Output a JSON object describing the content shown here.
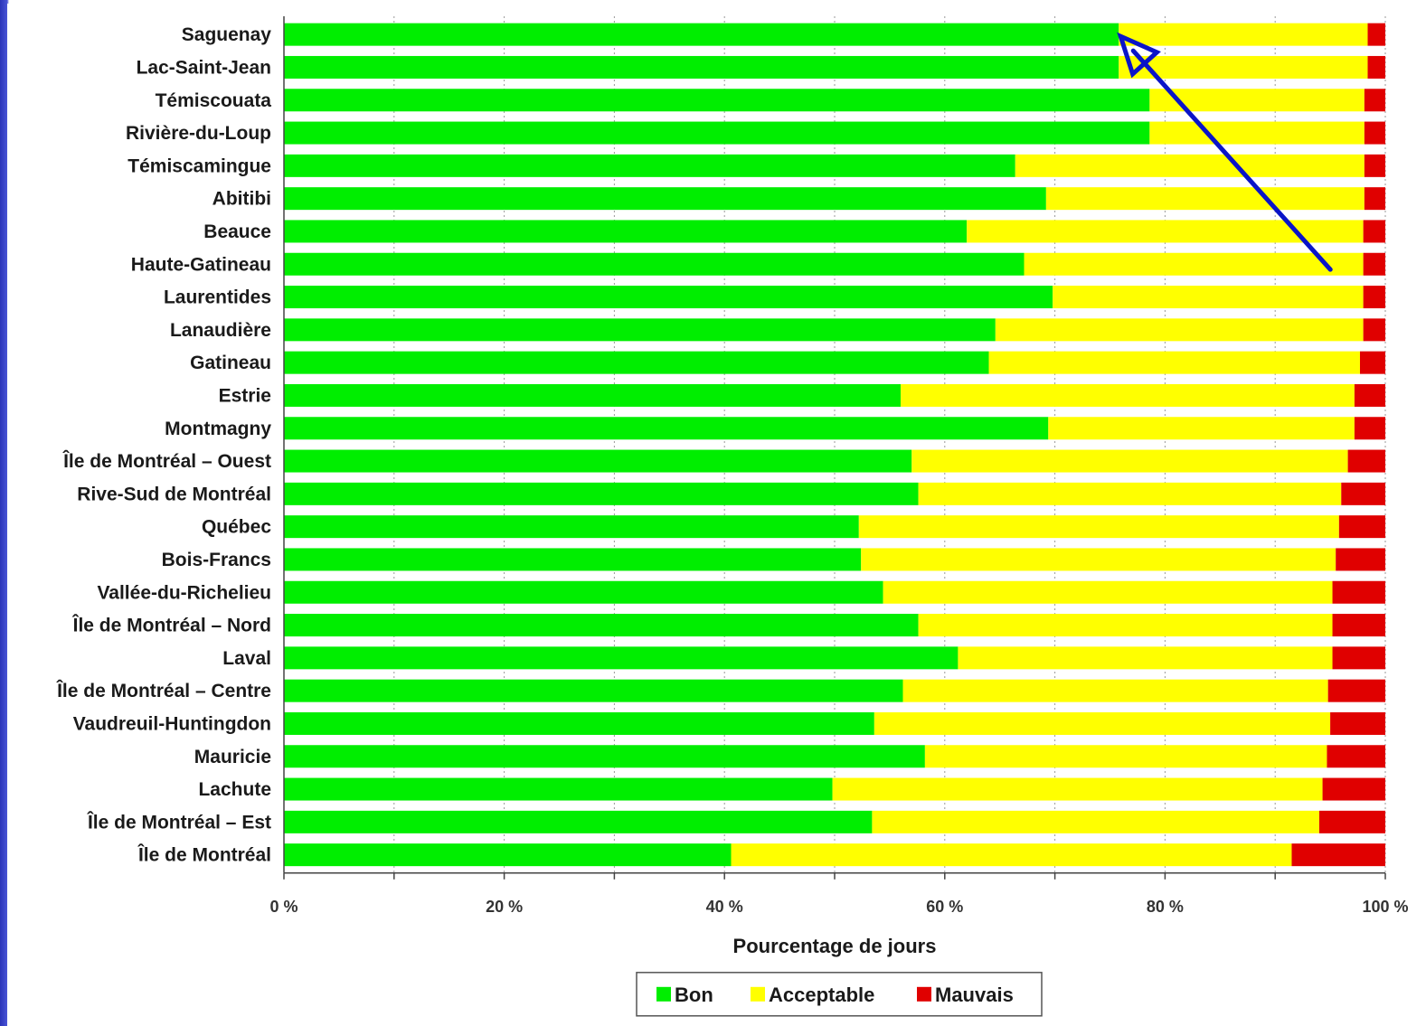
{
  "chart_data": {
    "type": "bar",
    "orientation": "horizontal",
    "stacked": true,
    "title": "",
    "xlabel": "Pourcentage de jours",
    "ylabel": "",
    "xlim": [
      0,
      100
    ],
    "grid": true,
    "legend_position": "bottom",
    "x_ticks": [
      "0 %",
      "20 %",
      "40 %",
      "60 %",
      "80 %",
      "100 %"
    ],
    "categories": [
      "Saguenay",
      "Lac-Saint-Jean",
      "Témiscouata",
      "Rivière-du-Loup",
      "Témiscamingue",
      "Abitibi",
      "Beauce",
      "Haute-Gatineau",
      "Laurentides",
      "Lanaudière",
      "Gatineau",
      "Estrie",
      "Montmagny",
      "Île de Montréal – Ouest",
      "Rive-Sud de Montréal",
      "Québec",
      "Bois-Francs",
      "Vallée-du-Richelieu",
      "Île de Montréal – Nord",
      "Laval",
      "Île de Montréal – Centre",
      "Vaudreuil-Huntingdon",
      "Mauricie",
      "Lachute",
      "Île de Montréal – Est",
      "Île de Montréal"
    ],
    "series": [
      {
        "name": "Bon",
        "color": "#00ee00",
        "values": [
          75.8,
          75.8,
          78.6,
          78.6,
          66.4,
          69.2,
          62.0,
          67.2,
          69.8,
          64.6,
          64.0,
          56.0,
          69.4,
          57.0,
          57.6,
          52.2,
          52.4,
          54.4,
          57.6,
          61.2,
          56.2,
          53.6,
          58.2,
          49.8,
          53.4,
          40.6
        ]
      },
      {
        "name": "Acceptable",
        "color": "#ffff00",
        "values": [
          22.6,
          22.6,
          19.5,
          19.5,
          31.7,
          28.9,
          36.0,
          30.8,
          28.2,
          33.4,
          33.7,
          41.2,
          27.8,
          39.6,
          38.4,
          43.6,
          43.1,
          40.8,
          37.6,
          34.0,
          38.6,
          41.4,
          36.5,
          44.5,
          40.6,
          50.9
        ]
      },
      {
        "name": "Mauvais",
        "color": "#e00000",
        "values": [
          1.6,
          1.6,
          1.9,
          1.9,
          1.9,
          1.9,
          2.0,
          2.0,
          2.0,
          2.0,
          2.3,
          2.8,
          2.8,
          3.4,
          4.0,
          4.2,
          4.5,
          4.8,
          4.8,
          4.8,
          5.2,
          5.0,
          5.3,
          5.7,
          6.0,
          8.5
        ]
      }
    ],
    "annotations": [
      {
        "type": "arrow",
        "color": "#0a14c8",
        "points_to_category": "Saguenay",
        "points_to_value": 75.8
      }
    ]
  }
}
